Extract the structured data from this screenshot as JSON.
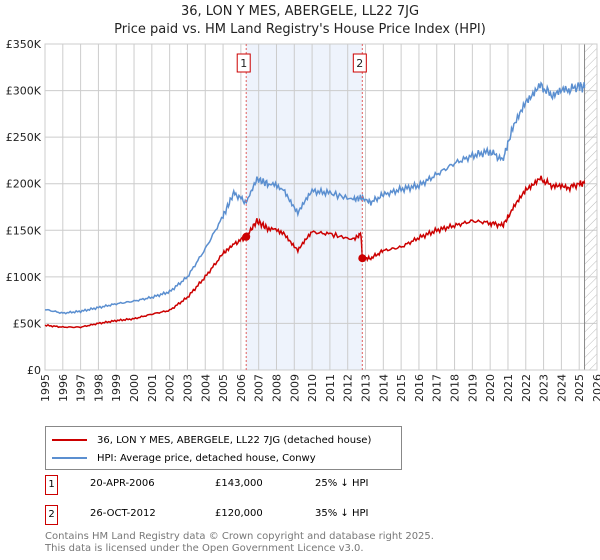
{
  "chart_data": {
    "type": "line",
    "title": "36, LON Y MES, ABERGELE, LL22 7JG",
    "subtitle": "Price paid vs. HM Land Registry's House Price Index (HPI)",
    "xlim": [
      1995,
      2026
    ],
    "ylim": [
      0,
      350000
    ],
    "x_ticks": [
      "1995",
      "1996",
      "1997",
      "1998",
      "1999",
      "2000",
      "2001",
      "2002",
      "2003",
      "2004",
      "2005",
      "2006",
      "2007",
      "2008",
      "2009",
      "2010",
      "2011",
      "2012",
      "2013",
      "2014",
      "2015",
      "2016",
      "2017",
      "2018",
      "2019",
      "2020",
      "2021",
      "2022",
      "2023",
      "2024",
      "2025",
      "2026"
    ],
    "y_ticks": [
      {
        "v": 0,
        "label": "£0"
      },
      {
        "v": 50000,
        "label": "£50K"
      },
      {
        "v": 100000,
        "label": "£100K"
      },
      {
        "v": 150000,
        "label": "£150K"
      },
      {
        "v": 200000,
        "label": "£200K"
      },
      {
        "v": 250000,
        "label": "£250K"
      },
      {
        "v": 300000,
        "label": "£300K"
      },
      {
        "v": 350000,
        "label": "£350K"
      }
    ],
    "grid": true,
    "series": [
      {
        "name": "36, LON Y MES, ABERGELE, LL22 7JG (detached house)",
        "color": "#cc0000",
        "x": [
          1995,
          1996,
          1997,
          1998,
          1999,
          2000,
          2001,
          2002,
          2003,
          2004,
          2005,
          2005.6,
          2006.3,
          2006.9,
          2007.5,
          2008.4,
          2009.2,
          2010,
          2011,
          2012.3,
          2012.75,
          2012.82,
          2013.3,
          2014,
          2015,
          2016,
          2017,
          2018,
          2019,
          2020,
          2020.7,
          2021.2,
          2022,
          2022.8,
          2023.5,
          2024.3,
          2025,
          2025.3
        ],
        "y": [
          48000,
          46000,
          46000,
          50000,
          53000,
          55000,
          60000,
          64000,
          78000,
          100000,
          125000,
          135000,
          143000,
          160000,
          152000,
          148000,
          128000,
          148000,
          146000,
          140000,
          146000,
          120000,
          120000,
          128000,
          132000,
          142000,
          150000,
          155000,
          160000,
          158000,
          155000,
          170000,
          195000,
          205000,
          198000,
          195000,
          200000,
          200000
        ]
      },
      {
        "name": "HPI: Average price, detached house, Conwy",
        "color": "#5b8fd0",
        "x": [
          1995,
          1996,
          1997,
          1998,
          1999,
          2000,
          2001,
          2002,
          2003,
          2004,
          2005,
          2005.6,
          2006.3,
          2006.9,
          2007.5,
          2008.4,
          2009.2,
          2010,
          2011,
          2012.3,
          2012.75,
          2013.3,
          2014,
          2015,
          2016,
          2017,
          2018,
          2019,
          2020,
          2020.7,
          2021.2,
          2022,
          2022.8,
          2023.5,
          2024.3,
          2025,
          2025.3
        ],
        "y": [
          65000,
          61000,
          63000,
          67000,
          71000,
          74000,
          78000,
          84000,
          100000,
          130000,
          165000,
          190000,
          180000,
          205000,
          200000,
          195000,
          168000,
          192000,
          190000,
          183000,
          185000,
          180000,
          188000,
          194000,
          198000,
          210000,
          222000,
          230000,
          235000,
          225000,
          255000,
          290000,
          305000,
          295000,
          300000,
          305000,
          303000
        ]
      }
    ],
    "sales": [
      {
        "id": "1",
        "x": 2006.3,
        "y": 143000
      },
      {
        "id": "2",
        "x": 2012.82,
        "y": 120000
      }
    ],
    "shaded_range": [
      2006.3,
      2012.82
    ],
    "hatched_from": 2025.3
  },
  "legend": {
    "red": "36, LON Y MES, ABERGELE, LL22 7JG (detached house)",
    "blue": "HPI: Average price, detached house, Conwy"
  },
  "transactions": [
    {
      "id": "1",
      "date": "20-APR-2006",
      "price": "£143,000",
      "hpi": "25% ↓ HPI"
    },
    {
      "id": "2",
      "date": "26-OCT-2012",
      "price": "£120,000",
      "hpi": "35% ↓ HPI"
    }
  ],
  "footer": {
    "line1": "Contains HM Land Registry data © Crown copyright and database right 2025.",
    "line2": "This data is licensed under the Open Government Licence v3.0."
  }
}
